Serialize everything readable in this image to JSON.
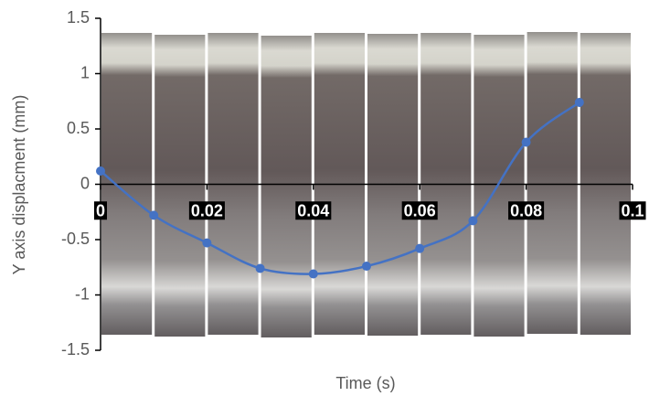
{
  "chart_data": {
    "type": "line",
    "x_label": "Time (s)",
    "y_label": "Y axis displacment (mm)",
    "x": [
      0,
      0.01,
      0.02,
      0.03,
      0.04,
      0.05,
      0.06,
      0.07,
      0.08,
      0.09
    ],
    "series": [
      {
        "color": "#4472c4",
        "values": [
          0.12,
          -0.28,
          -0.53,
          -0.76,
          -0.81,
          -0.74,
          -0.58,
          -0.33,
          0.38,
          0.74
        ]
      }
    ],
    "xlim": [
      0,
      0.1
    ],
    "xticks": [
      0,
      0.02,
      0.04,
      0.06,
      0.08,
      0.1
    ],
    "ylim": [
      -1.5,
      1.5
    ],
    "yticks": [
      -1.5,
      -1,
      -0.5,
      0,
      0.5,
      1,
      1.5
    ],
    "smooth": true
  }
}
